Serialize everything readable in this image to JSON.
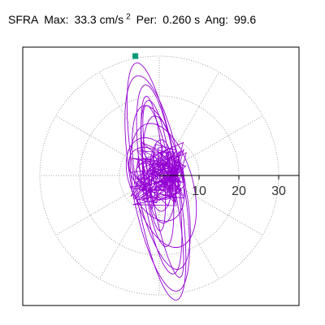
{
  "header": {
    "station": "SFRA",
    "max_label": "Max:",
    "max_value": "33.3 cm/s",
    "max_exponent": "2",
    "period_label": "Per:",
    "period_value": "0.260 s",
    "angle_label": "Ang:",
    "angle_value": "99.6"
  },
  "chart_data": {
    "type": "scatter",
    "title": "SFRA",
    "units": "cm/s²",
    "max_amplitude": 33.3,
    "period_s": 0.26,
    "angle_deg": 99.6,
    "radial_axis": {
      "ticks": [
        10,
        20,
        30
      ],
      "range": [
        0,
        35
      ]
    },
    "grid": true,
    "grid_circles": [
      10,
      20,
      30
    ],
    "grid_spokes_deg": [
      30,
      60,
      90,
      120,
      150,
      180,
      210,
      240,
      270,
      300,
      330
    ],
    "trace_color": "#9400d3",
    "marker_color": "#009977",
    "marker_point": {
      "x": -6.0,
      "y": 30.0
    },
    "orbit": [
      {
        "a": 30.2,
        "b": 5.5,
        "tilt": 99.6,
        "cx": -0.7,
        "cy": -1.5
      },
      {
        "a": 27.5,
        "b": 6.5,
        "tilt": 100.5,
        "cx": -0.5,
        "cy": -2.0
      },
      {
        "a": 24.0,
        "b": 4.5,
        "tilt": 98.5,
        "cx": 0.0,
        "cy": -1.0
      },
      {
        "a": 21.0,
        "b": 6.0,
        "tilt": 102.0,
        "cx": 0.5,
        "cy": -3.0
      },
      {
        "a": 18.5,
        "b": 3.5,
        "tilt": 97.0,
        "cx": -0.5,
        "cy": 0.5
      },
      {
        "a": 16.0,
        "b": 7.5,
        "tilt": 105.0,
        "cx": 1.0,
        "cy": -2.5
      },
      {
        "a": 13.5,
        "b": 4.0,
        "tilt": 95.0,
        "cx": 0.0,
        "cy": 1.5
      },
      {
        "a": 11.0,
        "b": 6.5,
        "tilt": 112.0,
        "cx": -1.0,
        "cy": -1.0
      },
      {
        "a": 9.0,
        "b": 3.0,
        "tilt": 90.0,
        "cx": 0.5,
        "cy": 0.0
      },
      {
        "a": 7.5,
        "b": 5.0,
        "tilt": 130.0,
        "cx": -1.5,
        "cy": 0.5
      },
      {
        "a": 6.0,
        "b": 2.5,
        "tilt": 150.0,
        "cx": 0.0,
        "cy": 0.5
      },
      {
        "a": 5.0,
        "b": 3.5,
        "tilt": 165.0,
        "cx": -1.0,
        "cy": 0.0
      },
      {
        "a": 4.0,
        "b": 2.0,
        "tilt": 120.0,
        "cx": 0.5,
        "cy": -0.5
      },
      {
        "a": 17.0,
        "b": 2.5,
        "tilt": 96.0,
        "cx": -1.5,
        "cy": 3.0
      },
      {
        "a": 22.0,
        "b": 3.0,
        "tilt": 101.0,
        "cx": 1.0,
        "cy": -4.0
      }
    ]
  }
}
